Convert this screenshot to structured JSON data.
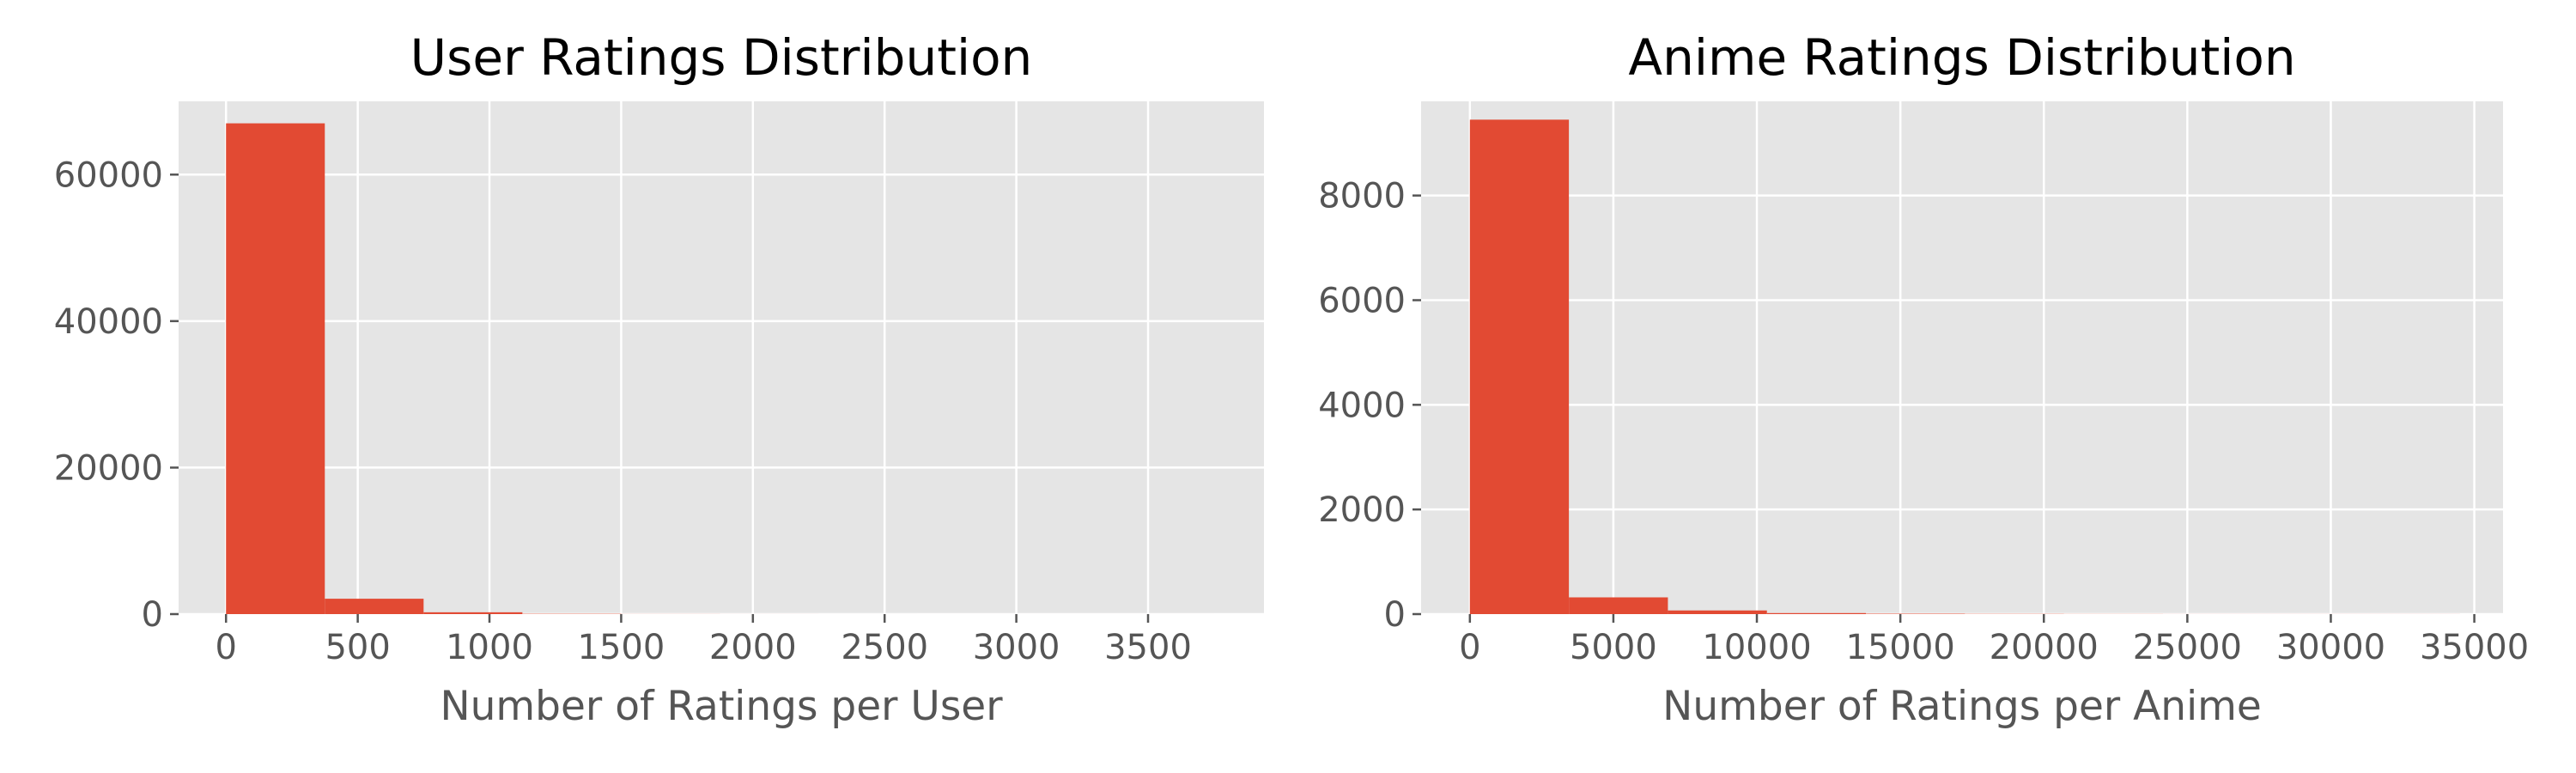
{
  "chart_data": [
    {
      "type": "bar",
      "title": "User Ratings Distribution",
      "xlabel": "Number of Ratings per User",
      "ylabel": "",
      "xlim": [
        -180,
        3940
      ],
      "ylim": [
        0,
        70000
      ],
      "xticks": [
        0,
        500,
        1000,
        1500,
        2000,
        2500,
        3000,
        3500
      ],
      "yticks": [
        0,
        20000,
        40000,
        60000
      ],
      "bins": [
        {
          "x0": 0,
          "x1": 375,
          "count": 67000
        },
        {
          "x0": 375,
          "x1": 750,
          "count": 2100
        },
        {
          "x0": 750,
          "x1": 1125,
          "count": 250
        },
        {
          "x0": 1125,
          "x1": 1500,
          "count": 40
        },
        {
          "x0": 1500,
          "x1": 1875,
          "count": 10
        },
        {
          "x0": 1875,
          "x1": 2250,
          "count": 4
        },
        {
          "x0": 2250,
          "x1": 2625,
          "count": 2
        },
        {
          "x0": 2625,
          "x1": 3000,
          "count": 1
        },
        {
          "x0": 3000,
          "x1": 3375,
          "count": 1
        },
        {
          "x0": 3375,
          "x1": 3750,
          "count": 1
        }
      ],
      "grid": true,
      "bar_color": "#E24A33",
      "background": "#E5E5E5"
    },
    {
      "type": "bar",
      "title": "Anime Ratings Distribution",
      "xlabel": "Number of Ratings per Anime",
      "ylabel": "",
      "xlim": [
        -1700,
        36000
      ],
      "ylim": [
        0,
        9800
      ],
      "xticks": [
        0,
        5000,
        10000,
        15000,
        20000,
        25000,
        30000,
        35000
      ],
      "yticks": [
        0,
        2000,
        4000,
        6000,
        8000
      ],
      "bins": [
        {
          "x0": 0,
          "x1": 3450,
          "count": 9450
        },
        {
          "x0": 3450,
          "x1": 6900,
          "count": 320
        },
        {
          "x0": 6900,
          "x1": 10350,
          "count": 70
        },
        {
          "x0": 10350,
          "x1": 13800,
          "count": 20
        },
        {
          "x0": 13800,
          "x1": 17250,
          "count": 8
        },
        {
          "x0": 17250,
          "x1": 20700,
          "count": 4
        },
        {
          "x0": 20700,
          "x1": 24150,
          "count": 2
        },
        {
          "x0": 24150,
          "x1": 27600,
          "count": 1
        },
        {
          "x0": 27600,
          "x1": 31050,
          "count": 1
        },
        {
          "x0": 31050,
          "x1": 34500,
          "count": 1
        }
      ],
      "grid": true,
      "bar_color": "#E24A33",
      "background": "#E5E5E5"
    }
  ]
}
